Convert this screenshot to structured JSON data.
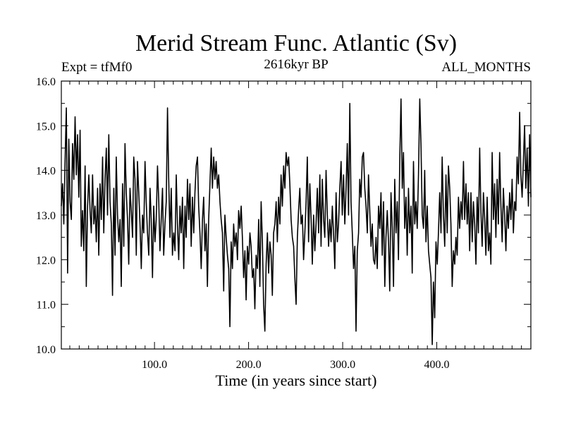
{
  "chart_data": {
    "type": "line",
    "title": "Merid Stream Func. Atlantic (Sv)",
    "subtitle_left": "Expt = tfMf0",
    "subtitle_center": "2616kyr BP",
    "subtitle_right": "ALL_MONTHS",
    "xlabel": "Time (in years since start)",
    "ylabel": "",
    "xlim": [
      1,
      500
    ],
    "ylim": [
      10.0,
      16.0
    ],
    "xticks": [
      100,
      200,
      300,
      400
    ],
    "xtick_labels": [
      "100.0",
      "200.0",
      "300.0",
      "400.0"
    ],
    "yticks": [
      10,
      11,
      12,
      13,
      14,
      15,
      16
    ],
    "ytick_labels": [
      "10.0",
      "11.0",
      "12.0",
      "13.0",
      "14.0",
      "15.0",
      "16.0"
    ],
    "grid": false,
    "series": [
      {
        "values": [
          13.2,
          13.7,
          12.8,
          14.2,
          15.4,
          11.7,
          14.7,
          13.3,
          12.9,
          14.6,
          13.8,
          15.2,
          13.9,
          14.8,
          13.4,
          14.9,
          12.3,
          13.1,
          12.2,
          14.1,
          11.4,
          13.2,
          13.9,
          13.1,
          12.6,
          13.9,
          12.8,
          13.2,
          12.4,
          13.6,
          12.1,
          13.7,
          12.9,
          14.3,
          12.6,
          13.8,
          14.5,
          13.0,
          14.8,
          13.3,
          12.8,
          11.2,
          13.6,
          12.1,
          14.3,
          13.0,
          12.4,
          12.9,
          11.4,
          13.7,
          12.3,
          14.6,
          13.5,
          12.9,
          11.9,
          13.6,
          13.1,
          12.5,
          14.3,
          13.8,
          12.1,
          14.2,
          13.5,
          12.8,
          11.8,
          13.0,
          12.6,
          14.2,
          13.3,
          12.6,
          12.1,
          13.6,
          12.9,
          11.6,
          13.2,
          12.4,
          12.9,
          14.1,
          13.3,
          12.2,
          12.9,
          13.6,
          12.1,
          12.8,
          13.3,
          15.4,
          13.8,
          12.5,
          13.6,
          12.1,
          12.6,
          12.2,
          13.9,
          12.8,
          12.0,
          13.2,
          12.6,
          13.4,
          11.8,
          13.2,
          12.5,
          13.8,
          12.9,
          13.7,
          12.3,
          13.4,
          12.6,
          13.5,
          14.1,
          14.3,
          13.2,
          12.6,
          11.8,
          12.9,
          13.4,
          12.2,
          12.8,
          11.4,
          12.9,
          13.7,
          14.5,
          13.6,
          14.3,
          13.8,
          14.2,
          13.6,
          13.9,
          13.3,
          12.9,
          12.6,
          11.3,
          13.0,
          12.5,
          12.1,
          11.8,
          10.5,
          12.4,
          11.8,
          12.8,
          12.3,
          12.6,
          12.0,
          13.1,
          12.7,
          13.2,
          12.5,
          11.6,
          12.2,
          11.1,
          12.3,
          11.9,
          12.6,
          12.3,
          11.6,
          11.8,
          10.9,
          12.1,
          11.8,
          12.9,
          11.4,
          13.3,
          12.4,
          11.0,
          10.4,
          11.9,
          12.6,
          11.7,
          12.4,
          12.1,
          11.2,
          12.6,
          12.8,
          13.3,
          12.4,
          13.4,
          12.8,
          13.9,
          13.2,
          14.1,
          13.6,
          14.4,
          14.1,
          14.3,
          13.7,
          12.9,
          12.5,
          12.3,
          11.6,
          11.0,
          12.5,
          13.1,
          13.6,
          12.8,
          13.0,
          12.0,
          12.6,
          13.3,
          14.3,
          12.4,
          13.7,
          12.9,
          11.9,
          13.0,
          12.2,
          12.8,
          13.6,
          12.6,
          13.9,
          12.3,
          13.8,
          12.9,
          12.5,
          14.0,
          13.0,
          12.3,
          12.9,
          12.4,
          13.2,
          12.6,
          11.8,
          13.5,
          12.4,
          12.8,
          13.6,
          14.2,
          13.0,
          13.9,
          12.8,
          13.6,
          14.6,
          13.0,
          15.5,
          13.3,
          12.6,
          11.8,
          12.3,
          10.4,
          12.2,
          12.6,
          13.8,
          13.4,
          14.3,
          14.4,
          13.6,
          13.2,
          12.6,
          13.9,
          13.1,
          12.3,
          12.8,
          12.0,
          11.9,
          12.5,
          11.8,
          13.2,
          12.7,
          13.5,
          12.1,
          13.3,
          11.4,
          12.5,
          13.1,
          12.4,
          11.3,
          13.5,
          12.7,
          11.4,
          13.8,
          12.6,
          13.3,
          12.0,
          14.2,
          15.6,
          13.6,
          14.4,
          12.7,
          13.4,
          12.1,
          13.6,
          12.6,
          13.2,
          11.7,
          14.2,
          12.8,
          13.3,
          12.7,
          13.9,
          15.6,
          14.6,
          13.0,
          12.7,
          14.0,
          12.4,
          13.2,
          12.2,
          11.9,
          11.6,
          10.1,
          11.5,
          10.7,
          12.4,
          11.9,
          12.6,
          13.5,
          12.6,
          14.3,
          13.0,
          12.3,
          13.9,
          12.6,
          14.1,
          13.6,
          12.8,
          11.4,
          12.2,
          11.9,
          12.5,
          12.1,
          13.4,
          12.7,
          13.3,
          12.9,
          14.2,
          12.9,
          13.7,
          12.8,
          13.5,
          12.2,
          13.5,
          12.4,
          13.3,
          12.8,
          11.9,
          13.4,
          12.6,
          14.5,
          13.1,
          12.3,
          13.5,
          12.9,
          12.1,
          13.4,
          12.2,
          12.6,
          11.9,
          14.4,
          12.9,
          13.7,
          12.5,
          13.8,
          12.8,
          14.4,
          13.2,
          12.4,
          13.6,
          13.0,
          12.2,
          13.2,
          12.7,
          13.5,
          12.9,
          13.8,
          12.6,
          13.3,
          13.1,
          14.3,
          13.7,
          15.3,
          13.9,
          13.4,
          14.2,
          15.0,
          13.6,
          14.5,
          13.2,
          14.8,
          13.4
        ]
      }
    ]
  }
}
